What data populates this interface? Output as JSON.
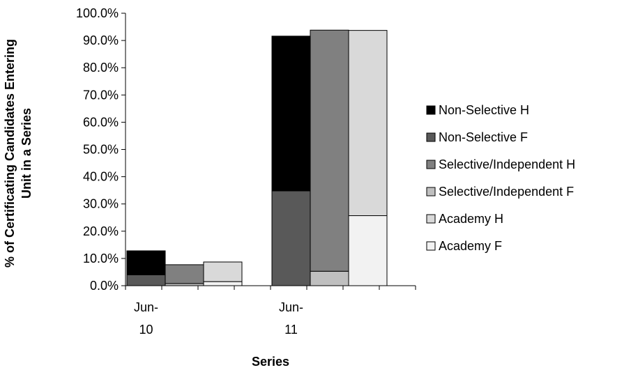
{
  "chart_data": {
    "type": "bar",
    "stacked": true,
    "xlabel": "Series",
    "ylabel_lines": [
      "% of Certificating Candidates Entering",
      "Unit in a Series"
    ],
    "ylim": [
      0,
      100
    ],
    "ytick_step": 10,
    "ytick_labels": [
      "0.0%",
      "10.0%",
      "20.0%",
      "30.0%",
      "40.0%",
      "50.0%",
      "60.0%",
      "70.0%",
      "80.0%",
      "90.0%",
      "100.0%"
    ],
    "categories": [
      {
        "lines": [
          "Jun-",
          "10"
        ]
      },
      {
        "lines": [
          "Jun-",
          "11"
        ]
      }
    ],
    "groups": [
      {
        "name": "Non-Selective",
        "stack": [
          {
            "series": "Non-Selective F",
            "values": [
              4.0,
              34.8
            ]
          },
          {
            "series": "Non-Selective H",
            "values": [
              8.8,
              56.8
            ]
          }
        ]
      },
      {
        "name": "Selective/Independent",
        "stack": [
          {
            "series": "Selective/Independent F",
            "values": [
              0.8,
              5.3
            ]
          },
          {
            "series": "Selective/Independent H",
            "values": [
              6.9,
              88.5
            ]
          }
        ]
      },
      {
        "name": "Academy",
        "stack": [
          {
            "series": "Academy F",
            "values": [
              1.5,
              25.7
            ]
          },
          {
            "series": "Academy H",
            "values": [
              7.2,
              68.0
            ]
          }
        ]
      }
    ],
    "legend": {
      "position": "right",
      "entries": [
        {
          "name": "Non-Selective H",
          "color": "#000000"
        },
        {
          "name": "Non-Selective F",
          "color": "#595959"
        },
        {
          "name": "Selective/Independent H",
          "color": "#808080"
        },
        {
          "name": "Selective/Independent F",
          "color": "#bfbfbf"
        },
        {
          "name": "Academy H",
          "color": "#d9d9d9"
        },
        {
          "name": "Academy F",
          "color": "#f2f2f2"
        }
      ]
    },
    "grid": false
  }
}
